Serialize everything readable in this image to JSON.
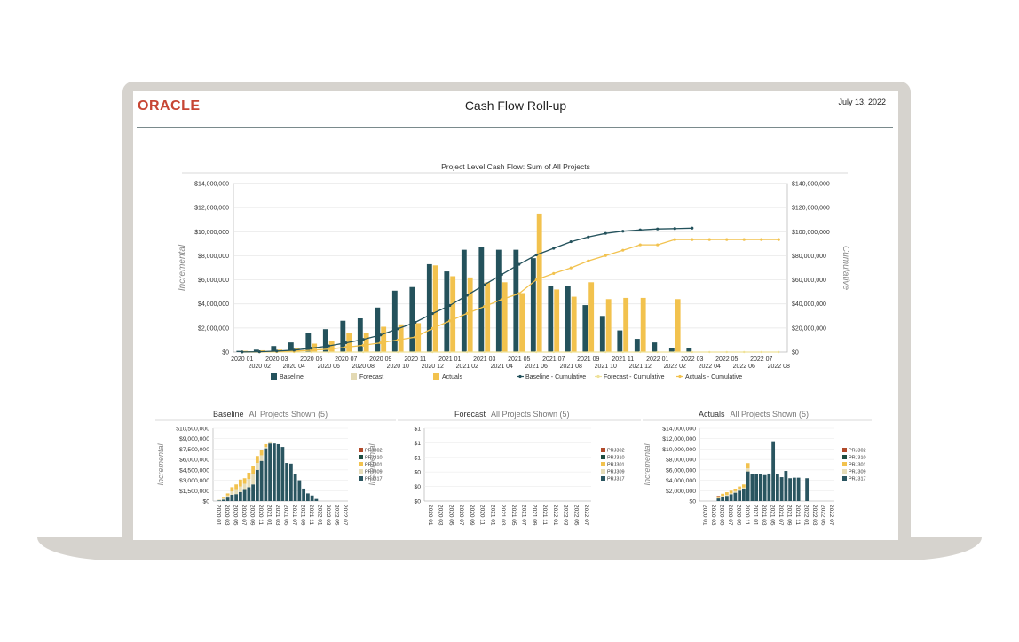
{
  "header": {
    "logo_text": "ORACLE",
    "title": "Cash Flow Roll-up",
    "date": "July 13, 2022"
  },
  "colors": {
    "baseline": "#24525c",
    "forecast": "#e3d9b3",
    "actuals": "#f2c24e",
    "baseline_cum": "#24525c",
    "forecast_cum": "#efe29a",
    "actuals_cum": "#f2c24e",
    "prj302": "#b14a2a",
    "prj310": "#1d4d41",
    "prj301": "#f2c24e",
    "prj309": "#e6dcb7",
    "prj317": "#2a5560"
  },
  "chart_data": [
    {
      "type": "bar",
      "title": "Project Level Cash Flow: Sum of All Projects",
      "ylabel": "Incremental",
      "y2label": "Cumulative",
      "ylim": [
        0,
        14000000
      ],
      "y2lim": [
        0,
        140000000
      ],
      "y_ticks": [
        "$0",
        "$2,000,000",
        "$4,000,000",
        "$6,000,000",
        "$8,000,000",
        "$10,000,000",
        "$12,000,000",
        "$14,000,000"
      ],
      "y2_ticks": [
        "$0",
        "$20,000,000",
        "$40,000,000",
        "$60,000,000",
        "$80,000,000",
        "$100,000,000",
        "$120,000,000",
        "$140,000,000"
      ],
      "categories": [
        "2020 01",
        "2020 02",
        "2020 03",
        "2020 04",
        "2020 05",
        "2020 06",
        "2020 07",
        "2020 08",
        "2020 09",
        "2020 10",
        "2020 11",
        "2020 12",
        "2021 01",
        "2021 02",
        "2021 03",
        "2021 04",
        "2021 05",
        "2021 06",
        "2021 07",
        "2021 08",
        "2021 09",
        "2021 10",
        "2021 11",
        "2021 12",
        "2022 01",
        "2022 02",
        "2022 03",
        "2022 04",
        "2022 05",
        "2022 06",
        "2022 07",
        "2022 08"
      ],
      "legend": [
        "Baseline",
        "Forecast",
        "Actuals",
        "Baseline - Cumulative",
        "Forecast - Cumulative",
        "Actuals  - Cumulative"
      ],
      "legend_position": "bottom",
      "series": [
        {
          "name": "Baseline",
          "values": [
            100000,
            200000,
            500000,
            800000,
            1600000,
            1900000,
            2600000,
            2800000,
            3700000,
            5100000,
            5400000,
            7300000,
            6700000,
            8500000,
            8700000,
            8500000,
            8500000,
            7800000,
            5500000,
            5500000,
            3900000,
            3000000,
            1800000,
            1100000,
            800000,
            300000,
            350000,
            0,
            0,
            0,
            0,
            0
          ]
        },
        {
          "name": "Forecast",
          "values": [
            0,
            0,
            0,
            0,
            0,
            0,
            0,
            0,
            0,
            0,
            0,
            0,
            0,
            0,
            0,
            0,
            0,
            0,
            0,
            0,
            0,
            0,
            0,
            0,
            0,
            0,
            0,
            0,
            0,
            0,
            0,
            0
          ]
        },
        {
          "name": "Actuals",
          "values": [
            100000,
            150000,
            200000,
            300000,
            700000,
            950000,
            1600000,
            1600000,
            2100000,
            2300000,
            2400000,
            7200000,
            6300000,
            6200000,
            5800000,
            5800000,
            4900000,
            11500000,
            5200000,
            4600000,
            5800000,
            4400000,
            4500000,
            4500000,
            0,
            4400000,
            0,
            0,
            0,
            0,
            0,
            0
          ]
        },
        {
          "name": "Baseline - Cumulative",
          "values": [
            100000,
            300000,
            800000,
            1600000,
            3200000,
            5100000,
            7700000,
            10500000,
            14200000,
            19300000,
            24700000,
            32000000,
            38700000,
            47200000,
            55900000,
            64400000,
            72900000,
            80700000,
            86200000,
            91700000,
            95600000,
            98600000,
            100400000,
            101500000,
            102300000,
            102600000,
            102950000,
            null,
            null,
            null,
            null,
            null
          ]
        },
        {
          "name": "Forecast - Cumulative",
          "values": [
            0,
            0,
            0,
            0,
            0,
            0,
            0,
            0,
            0,
            0,
            0,
            0,
            0,
            0,
            0,
            0,
            0,
            0,
            0,
            0,
            0,
            0,
            0,
            0,
            0,
            0,
            0,
            0,
            0,
            0,
            0,
            0
          ]
        },
        {
          "name": "Actuals  - Cumulative",
          "values": [
            100000,
            250000,
            450000,
            750000,
            1450000,
            2400000,
            4000000,
            5600000,
            7700000,
            10000000,
            12400000,
            19600000,
            25900000,
            32100000,
            37900000,
            43700000,
            48600000,
            60100000,
            65300000,
            69900000,
            75700000,
            80100000,
            84600000,
            89100000,
            89100000,
            93500000,
            93500000,
            93500000,
            93500000,
            93500000,
            93500000,
            93500000
          ]
        }
      ]
    },
    {
      "type": "bar",
      "title": "Baseline",
      "subtitle": "All Projects Shown (5)",
      "ylabel": "Incremental",
      "ylim": [
        0,
        10500000
      ],
      "y_ticks": [
        "$0",
        "$1,500,000",
        "$3,000,000",
        "$4,500,000",
        "$6,000,000",
        "$7,500,000",
        "$9,000,000",
        "$10,500,000"
      ],
      "x_ticks": [
        "2020 01",
        "2020 03",
        "2020 05",
        "2020 07",
        "2020 09",
        "2020 11",
        "2021 01",
        "2021 03",
        "2021 05",
        "2021 07",
        "2021 09",
        "2021 11",
        "2022 01",
        "2022 03",
        "2022 05",
        "2022 07"
      ],
      "legend": [
        "PRJ302",
        "PRJ310",
        "PRJ301",
        "PRJ309",
        "PRJ317"
      ],
      "legend_position": "right",
      "stack": [
        {
          "name": "PRJ302",
          "values": [
            0,
            0,
            0,
            0,
            0,
            0,
            0,
            0,
            0,
            0,
            0,
            0,
            0,
            0,
            0,
            0,
            0,
            0,
            0,
            0,
            0,
            0,
            0,
            0,
            0,
            0,
            0,
            0,
            0,
            0,
            0,
            0
          ]
        },
        {
          "name": "PRJ310",
          "values": [
            0,
            0,
            0,
            0,
            0,
            0,
            0,
            0,
            0,
            0,
            0,
            0,
            0,
            0,
            0,
            0,
            0,
            0,
            0,
            0,
            0,
            0,
            0,
            0,
            0,
            0,
            0,
            0,
            0,
            0,
            0,
            0
          ]
        },
        {
          "name": "PRJ301",
          "values": [
            0,
            0,
            100000,
            300000,
            600000,
            800000,
            1000000,
            800000,
            900000,
            1200000,
            1000000,
            700000,
            400000,
            0,
            0,
            0,
            0,
            0,
            0,
            0,
            0,
            0,
            0,
            0,
            0,
            0,
            0,
            0,
            0,
            0,
            0,
            0
          ]
        },
        {
          "name": "PRJ309",
          "values": [
            0,
            100000,
            200000,
            300000,
            500000,
            600000,
            800000,
            900000,
            1200000,
            1500000,
            1000000,
            800000,
            200000,
            300000,
            0,
            0,
            0,
            0,
            0,
            0,
            0,
            0,
            0,
            0,
            0,
            0,
            0,
            0,
            0,
            0,
            0,
            0
          ]
        },
        {
          "name": "PRJ317",
          "values": [
            0,
            100000,
            200000,
            500000,
            900000,
            1000000,
            1300000,
            1600000,
            2000000,
            2400000,
            4500000,
            5800000,
            7600000,
            8300000,
            8300000,
            8200000,
            7800000,
            5500000,
            5400000,
            3900000,
            3000000,
            1800000,
            1100000,
            800000,
            300000,
            0,
            0,
            0,
            0,
            0,
            0,
            0
          ]
        }
      ]
    },
    {
      "type": "bar",
      "title": "Forecast",
      "subtitle": "All Projects Shown (5)",
      "ylabel": "Incremental",
      "ylim": [
        0,
        1
      ],
      "y_ticks": [
        "$0",
        "$0",
        "$0",
        "$1",
        "$1",
        "$1"
      ],
      "x_ticks": [
        "2020 01",
        "2020 03",
        "2020 05",
        "2020 07",
        "2020 09",
        "2020 11",
        "2021 01",
        "2021 03",
        "2021 05",
        "2021 07",
        "2021 09",
        "2021 11",
        "2022 01",
        "2022 03",
        "2022 05",
        "2022 07"
      ],
      "legend": [
        "PRJ302",
        "PRJ310",
        "PRJ301",
        "PRJ309",
        "PRJ317"
      ],
      "legend_position": "right",
      "stack": []
    },
    {
      "type": "bar",
      "title": "Actuals",
      "subtitle": "All Projects Shown (5)",
      "ylabel": "Incremental",
      "ylim": [
        0,
        14000000
      ],
      "y_ticks": [
        "$0",
        "$2,000,000",
        "$4,000,000",
        "$6,000,000",
        "$8,000,000",
        "$10,000,000",
        "$12,000,000",
        "$14,000,000"
      ],
      "x_ticks": [
        "2020 01",
        "2020 03",
        "2020 05",
        "2020 07",
        "2020 09",
        "2020 11",
        "2021 01",
        "2021 03",
        "2021 05",
        "2021 07",
        "2021 09",
        "2021 11",
        "2022 01",
        "2022 03",
        "2022 05",
        "2022 07"
      ],
      "legend": [
        "PRJ302",
        "PRJ310",
        "PRJ301",
        "PRJ309",
        "PRJ317"
      ],
      "legend_position": "right",
      "stack": [
        {
          "name": "PRJ302",
          "values": [
            0,
            0,
            0,
            0,
            100000,
            0,
            0,
            0,
            0,
            0,
            0,
            0,
            0,
            0,
            0,
            0,
            0,
            0,
            0,
            0,
            0,
            0,
            0,
            0,
            0,
            0,
            0,
            0,
            0,
            0,
            0,
            0
          ]
        },
        {
          "name": "PRJ310",
          "values": [
            0,
            0,
            0,
            0,
            0,
            0,
            0,
            0,
            0,
            0,
            0,
            0,
            0,
            0,
            0,
            0,
            0,
            0,
            0,
            0,
            0,
            0,
            0,
            0,
            0,
            0,
            0,
            0,
            0,
            0,
            0,
            0
          ]
        },
        {
          "name": "PRJ301",
          "values": [
            0,
            0,
            0,
            0,
            300000,
            400000,
            500000,
            500000,
            400000,
            500000,
            600000,
            1000000,
            0,
            0,
            0,
            0,
            0,
            0,
            0,
            0,
            0,
            0,
            0,
            0,
            0,
            0,
            0,
            0,
            0,
            0,
            0,
            0
          ]
        },
        {
          "name": "PRJ309",
          "values": [
            0,
            0,
            0,
            0,
            100000,
            200000,
            200000,
            200000,
            300000,
            300000,
            300000,
            600000,
            0,
            0,
            0,
            0,
            0,
            0,
            0,
            0,
            0,
            0,
            0,
            0,
            0,
            0,
            0,
            0,
            0,
            0,
            0,
            0
          ]
        },
        {
          "name": "PRJ317",
          "values": [
            0,
            0,
            0,
            0,
            500000,
            800000,
            1000000,
            1300000,
            1600000,
            2000000,
            2300000,
            5700000,
            5200000,
            5200000,
            5200000,
            5000000,
            5300000,
            11500000,
            5200000,
            4600000,
            5800000,
            4400000,
            4500000,
            4500000,
            0,
            4400000,
            0,
            0,
            0,
            0,
            0,
            0
          ]
        }
      ]
    }
  ]
}
